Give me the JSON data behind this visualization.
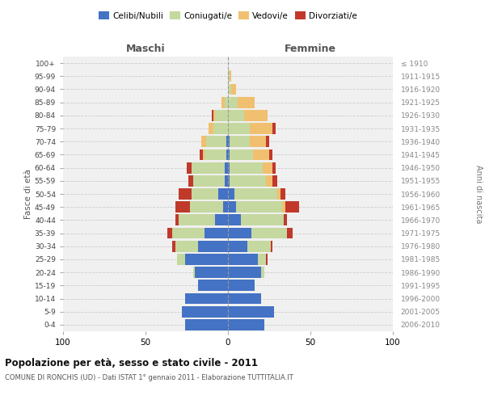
{
  "age_groups": [
    "0-4",
    "5-9",
    "10-14",
    "15-19",
    "20-24",
    "25-29",
    "30-34",
    "35-39",
    "40-44",
    "45-49",
    "50-54",
    "55-59",
    "60-64",
    "65-69",
    "70-74",
    "75-79",
    "80-84",
    "85-89",
    "90-94",
    "95-99",
    "100+"
  ],
  "birth_years": [
    "2006-2010",
    "2001-2005",
    "1996-2000",
    "1991-1995",
    "1986-1990",
    "1981-1985",
    "1976-1980",
    "1971-1975",
    "1966-1970",
    "1961-1965",
    "1956-1960",
    "1951-1955",
    "1946-1950",
    "1941-1945",
    "1936-1940",
    "1931-1935",
    "1926-1930",
    "1921-1925",
    "1916-1920",
    "1911-1915",
    "≤ 1910"
  ],
  "males": {
    "celibi": [
      26,
      28,
      26,
      18,
      20,
      26,
      18,
      14,
      8,
      3,
      6,
      2,
      2,
      1,
      1,
      0,
      0,
      0,
      0,
      0,
      0
    ],
    "coniugati": [
      0,
      0,
      0,
      0,
      1,
      5,
      14,
      20,
      22,
      20,
      16,
      19,
      20,
      13,
      12,
      9,
      8,
      2,
      0,
      0,
      0
    ],
    "vedovi": [
      0,
      0,
      0,
      0,
      0,
      0,
      0,
      0,
      0,
      0,
      0,
      0,
      0,
      1,
      3,
      3,
      1,
      2,
      0,
      0,
      0
    ],
    "divorziati": [
      0,
      0,
      0,
      0,
      0,
      0,
      2,
      3,
      2,
      9,
      8,
      3,
      3,
      2,
      0,
      0,
      1,
      0,
      0,
      0,
      0
    ]
  },
  "females": {
    "nubili": [
      22,
      28,
      20,
      16,
      20,
      18,
      12,
      14,
      8,
      5,
      4,
      1,
      1,
      1,
      1,
      0,
      0,
      0,
      0,
      0,
      0
    ],
    "coniugate": [
      0,
      0,
      0,
      0,
      2,
      5,
      14,
      22,
      26,
      28,
      26,
      22,
      20,
      14,
      12,
      13,
      10,
      6,
      2,
      1,
      0
    ],
    "vedove": [
      0,
      0,
      0,
      0,
      0,
      0,
      0,
      0,
      0,
      2,
      2,
      4,
      6,
      10,
      10,
      14,
      14,
      10,
      3,
      1,
      0
    ],
    "divorziate": [
      0,
      0,
      0,
      0,
      0,
      1,
      1,
      3,
      2,
      8,
      3,
      3,
      2,
      2,
      2,
      2,
      0,
      0,
      0,
      0,
      0
    ]
  },
  "colors": {
    "celibi": "#4472c4",
    "coniugati": "#c5d8a0",
    "vedovi": "#f0c070",
    "divorziati": "#c0392b"
  },
  "title": "Popolazione per età, sesso e stato civile - 2011",
  "subtitle": "COMUNE DI RONCHIS (UD) - Dati ISTAT 1° gennaio 2011 - Elaborazione TUTTITALIA.IT",
  "xlabel_left": "Maschi",
  "xlabel_right": "Femmine",
  "ylabel_left": "Fasce di età",
  "ylabel_right": "Anni di nascita",
  "xlim": 100,
  "bg_color": "#ffffff",
  "plot_bg_color": "#f0f0f0",
  "grid_color": "#cccccc"
}
